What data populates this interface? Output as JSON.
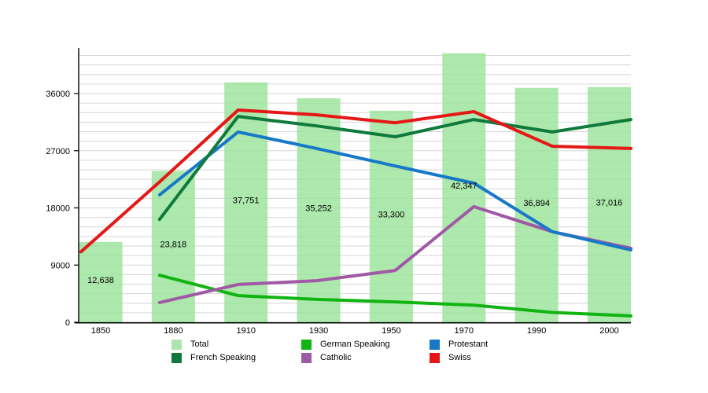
{
  "chart_data": {
    "type": "combo-bar-line",
    "title": "",
    "xlabel": "",
    "ylabel": "",
    "categories": [
      "1850",
      "1880",
      "1910",
      "1930",
      "1950",
      "1970",
      "1990",
      "2000"
    ],
    "y_ticks": [
      "0",
      "9000",
      "18000",
      "27000",
      "36000"
    ],
    "y_tick_values": [
      0,
      9000,
      18000,
      27000,
      36000
    ],
    "y_minor_step": 1500,
    "ylim": [
      0,
      43500
    ],
    "grid": true,
    "bars": {
      "name": "Total",
      "color": "#9be39b",
      "values": [
        12638,
        23818,
        37751,
        35252,
        33300,
        42347,
        36894,
        37016
      ],
      "labels": [
        "12,638",
        "23,818",
        "37,751",
        "35,252",
        "33,300",
        "42,347",
        "36,894",
        "37,016"
      ]
    },
    "series": [
      {
        "name": "German Speaking",
        "color": "#12b412",
        "values": [
          null,
          7400,
          4200,
          3600,
          3200,
          2700,
          1550,
          1000
        ]
      },
      {
        "name": "Catholic",
        "color": "#a05aa5",
        "values": [
          null,
          3100,
          5950,
          6550,
          8150,
          18200,
          14250,
          11650
        ]
      },
      {
        "name": "Protestant",
        "color": "#1878c8",
        "values": [
          null,
          20050,
          29950,
          27350,
          24600,
          21900,
          14250,
          11400
        ]
      },
      {
        "name": "French Speaking",
        "color": "#0f7a3c",
        "values": [
          null,
          16200,
          32400,
          30900,
          29200,
          31900,
          29950,
          31900
        ]
      },
      {
        "name": "Swiss",
        "color": "#e51717",
        "values": [
          11100,
          22100,
          33400,
          32650,
          31400,
          33150,
          27700,
          27350
        ]
      }
    ],
    "legend_position": "bottom",
    "legend": [
      {
        "label": "Total",
        "color": "#aee4ae"
      },
      {
        "label": "French Speaking",
        "color": "#0f7a3c"
      },
      {
        "label": "German Speaking",
        "color": "#12b412"
      },
      {
        "label": "Catholic",
        "color": "#a05aa5"
      },
      {
        "label": "Protestant",
        "color": "#1878c8"
      },
      {
        "label": "Swiss",
        "color": "#e51717"
      }
    ]
  },
  "colors": {
    "grid": "#d6d6d6",
    "axis": "#000000",
    "text": "#000000"
  }
}
